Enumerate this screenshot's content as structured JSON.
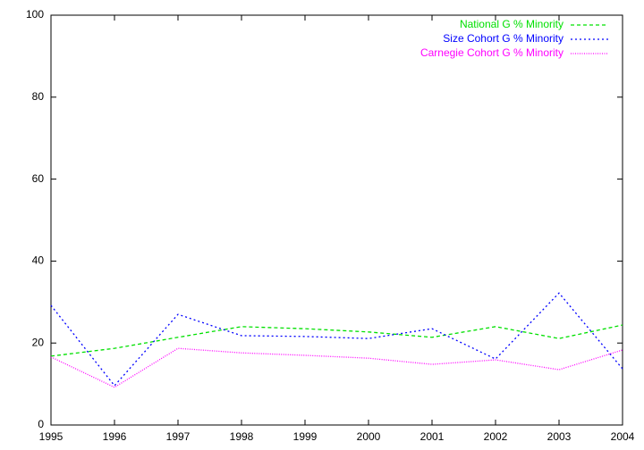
{
  "chart_data": {
    "type": "line",
    "x": [
      1995,
      1996,
      1997,
      1998,
      1999,
      2000,
      2001,
      2002,
      2003,
      2004
    ],
    "series": [
      {
        "name": "National G % Minority",
        "color": "#00e000",
        "dash": "4,3",
        "values": [
          16.8,
          18.7,
          21.4,
          24.0,
          23.5,
          22.7,
          21.4,
          24.0,
          21.1,
          24.4
        ]
      },
      {
        "name": "Size Cohort G % Minority",
        "color": "#0000ff",
        "dash": "2,3",
        "values": [
          29.2,
          9.6,
          27.0,
          21.8,
          21.6,
          21.1,
          23.5,
          16.1,
          32.2,
          13.7
        ]
      },
      {
        "name": "Carnegie Cohort G % Minority",
        "color": "#ff00ff",
        "dash": "1,1.5",
        "values": [
          16.6,
          9.2,
          18.7,
          17.6,
          17.0,
          16.3,
          14.8,
          15.9,
          13.5,
          18.3
        ]
      }
    ],
    "xlim": [
      1995,
      2004
    ],
    "xticks": [
      1995,
      1996,
      1997,
      1998,
      1999,
      2000,
      2001,
      2002,
      2003,
      2004
    ],
    "ylim": [
      0,
      100
    ],
    "yticks": [
      0,
      20,
      40,
      60,
      80,
      100
    ],
    "legend": "top-right"
  }
}
